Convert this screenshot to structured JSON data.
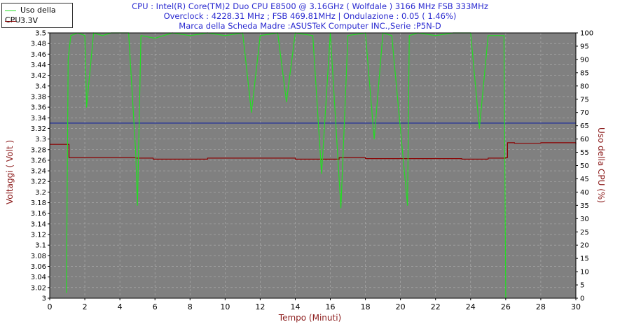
{
  "header": {
    "line1": "CPU : Intel(R) Core(TM)2 Duo CPU E8500 @ 3.16GHz ( Wolfdale ) 3166 MHz FSB 333MHz",
    "line2": "Overclock : 4228.31 MHz ; FSB 469.81MHz | Ondulazione : 0.05 ( 1.46%)",
    "line3": "Marca della Scheda Madre :ASUSTeK Computer INC.,Serie :P5N-D"
  },
  "legend": {
    "cpu_label": "Uso della CPU",
    "volt_label": "3.3V"
  },
  "colors": {
    "cpu": "#22dd22",
    "volt": "#8b0000",
    "ref": "#1a2a9a",
    "grid": "#8a8a8a",
    "plot_bg": "#808080",
    "axis_text": "#8b1a1a",
    "title_text": "#2a2ad0"
  },
  "chart_data": {
    "type": "line",
    "title": "CPU : Intel(R) Core(TM)2 Duo CPU E8500 @ 3.16GHz ( Wolfdale ) 3166 MHz FSB 333MHz",
    "xlabel": "Tempo (Minuti)",
    "ylabel_left": "Voltaggi ( Volt )",
    "ylabel_right": "Uso della CPU (%)",
    "xlim": [
      0,
      30
    ],
    "ylim_left": [
      3.0,
      3.5
    ],
    "ylim_right": [
      0,
      100
    ],
    "x_ticks": [
      "0",
      "2",
      "4",
      "6",
      "8",
      "10",
      "12",
      "14",
      "16",
      "18",
      "20",
      "22",
      "24",
      "26",
      "28",
      "30"
    ],
    "y_left_ticks": [
      "3",
      "3.02",
      "3.04",
      "3.06",
      "3.08",
      "3.1",
      "3.12",
      "3.14",
      "3.16",
      "3.18",
      "3.2",
      "3.22",
      "3.24",
      "3.26",
      "3.28",
      "3.3",
      "3.32",
      "3.34",
      "3.36",
      "3.38",
      "3.4",
      "3.42",
      "3.44",
      "3.46",
      "3.48",
      "3.5"
    ],
    "y_right_ticks": [
      "0",
      "5",
      "10",
      "15",
      "20",
      "25",
      "30",
      "35",
      "40",
      "45",
      "50",
      "55",
      "60",
      "65",
      "70",
      "75",
      "80",
      "85",
      "90",
      "95",
      "100"
    ],
    "grid": true,
    "legend_position": "top-left",
    "reference_line": {
      "value": 3.33,
      "axis": "left"
    },
    "series": [
      {
        "name": "3.3V",
        "axis": "left",
        "x": [
          0,
          0.5,
          0.9,
          1.1,
          4.9,
          5.9,
          9.0,
          11.0,
          14.0,
          16.5,
          18.0,
          20.5,
          23.5,
          25.0,
          26.0,
          26.1,
          26.5,
          28.0,
          30.0
        ],
        "values": [
          3.29,
          3.29,
          3.29,
          3.265,
          3.264,
          3.262,
          3.264,
          3.264,
          3.262,
          3.265,
          3.263,
          3.263,
          3.262,
          3.264,
          3.265,
          3.293,
          3.292,
          3.293,
          3.29
        ]
      },
      {
        "name": "Uso della CPU",
        "axis": "right",
        "x": [
          0.95,
          1.05,
          1.2,
          1.6,
          2.0,
          2.1,
          2.5,
          3.0,
          3.5,
          4.5,
          4.9,
          5.0,
          5.2,
          6.0,
          7.0,
          8.0,
          9.0,
          10.0,
          11.0,
          11.5,
          12.0,
          13.0,
          13.5,
          14.0,
          15.0,
          15.5,
          16.0,
          16.6,
          17.0,
          18.0,
          18.5,
          19.0,
          19.5,
          20.4,
          20.5,
          21.0,
          22.0,
          23.0,
          24.0,
          24.5,
          25.0,
          25.9,
          26.0
        ],
        "values": [
          2,
          90,
          99,
          100,
          99,
          72,
          100,
          99,
          100,
          100,
          55,
          35,
          99,
          98,
          100,
          99,
          100,
          99,
          100,
          70,
          99,
          100,
          74,
          100,
          99,
          47,
          100,
          34,
          99,
          100,
          60,
          100,
          99,
          35,
          99,
          100,
          99,
          100,
          100,
          64,
          99,
          99,
          0
        ]
      }
    ]
  }
}
